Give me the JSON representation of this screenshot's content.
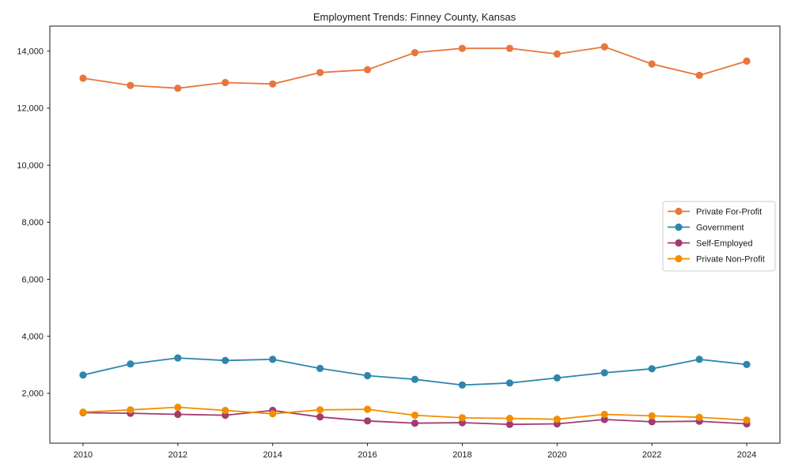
{
  "chart_data": {
    "type": "line",
    "title": "Employment Trends: Finney County, Kansas",
    "xlabel": "",
    "ylabel": "",
    "grid": false,
    "legend_position": "center-right",
    "x": [
      2010,
      2011,
      2012,
      2013,
      2014,
      2015,
      2016,
      2017,
      2018,
      2019,
      2020,
      2021,
      2022,
      2023,
      2024
    ],
    "x_ticks": [
      2010,
      2012,
      2014,
      2016,
      2018,
      2020,
      2022,
      2024
    ],
    "x_tick_labels": [
      "2010",
      "2012",
      "2014",
      "2016",
      "2018",
      "2020",
      "2022",
      "2024"
    ],
    "y_ticks": [
      {
        "value": 2000,
        "label": "2,000"
      },
      {
        "value": 4000,
        "label": "4,000"
      },
      {
        "value": 6000,
        "label": "6,000"
      },
      {
        "value": 8000,
        "label": "8,000"
      },
      {
        "value": 10000,
        "label": "10,000"
      },
      {
        "value": 12000,
        "label": "12,000"
      },
      {
        "value": 14000,
        "label": "14,000"
      }
    ],
    "xlim": [
      2009.3,
      2024.7
    ],
    "ylim": [
      250,
      14880
    ],
    "marker": "circle",
    "series": [
      {
        "name": "Private For-Profit",
        "color": "#E8763D",
        "values": [
          13050,
          12800,
          12700,
          12900,
          12850,
          13250,
          13350,
          13950,
          14100,
          14100,
          13900,
          14150,
          13550,
          13150,
          13650
        ]
      },
      {
        "name": "Government",
        "color": "#2E86AB",
        "values": [
          2640,
          3030,
          3240,
          3150,
          3190,
          2870,
          2620,
          2490,
          2290,
          2360,
          2540,
          2720,
          2860,
          3190,
          3010
        ]
      },
      {
        "name": "Self-Employed",
        "color": "#A23B72",
        "values": [
          1320,
          1300,
          1260,
          1230,
          1400,
          1170,
          1030,
          950,
          970,
          910,
          930,
          1080,
          1000,
          1020,
          930
        ]
      },
      {
        "name": "Private Non-Profit",
        "color": "#F18F01",
        "values": [
          1340,
          1420,
          1510,
          1400,
          1280,
          1420,
          1440,
          1230,
          1140,
          1120,
          1090,
          1260,
          1210,
          1160,
          1060
        ]
      }
    ],
    "axis_color": "#1a1a1a",
    "background_color": "#ffffff",
    "legend_border_color": "#cccccc"
  }
}
